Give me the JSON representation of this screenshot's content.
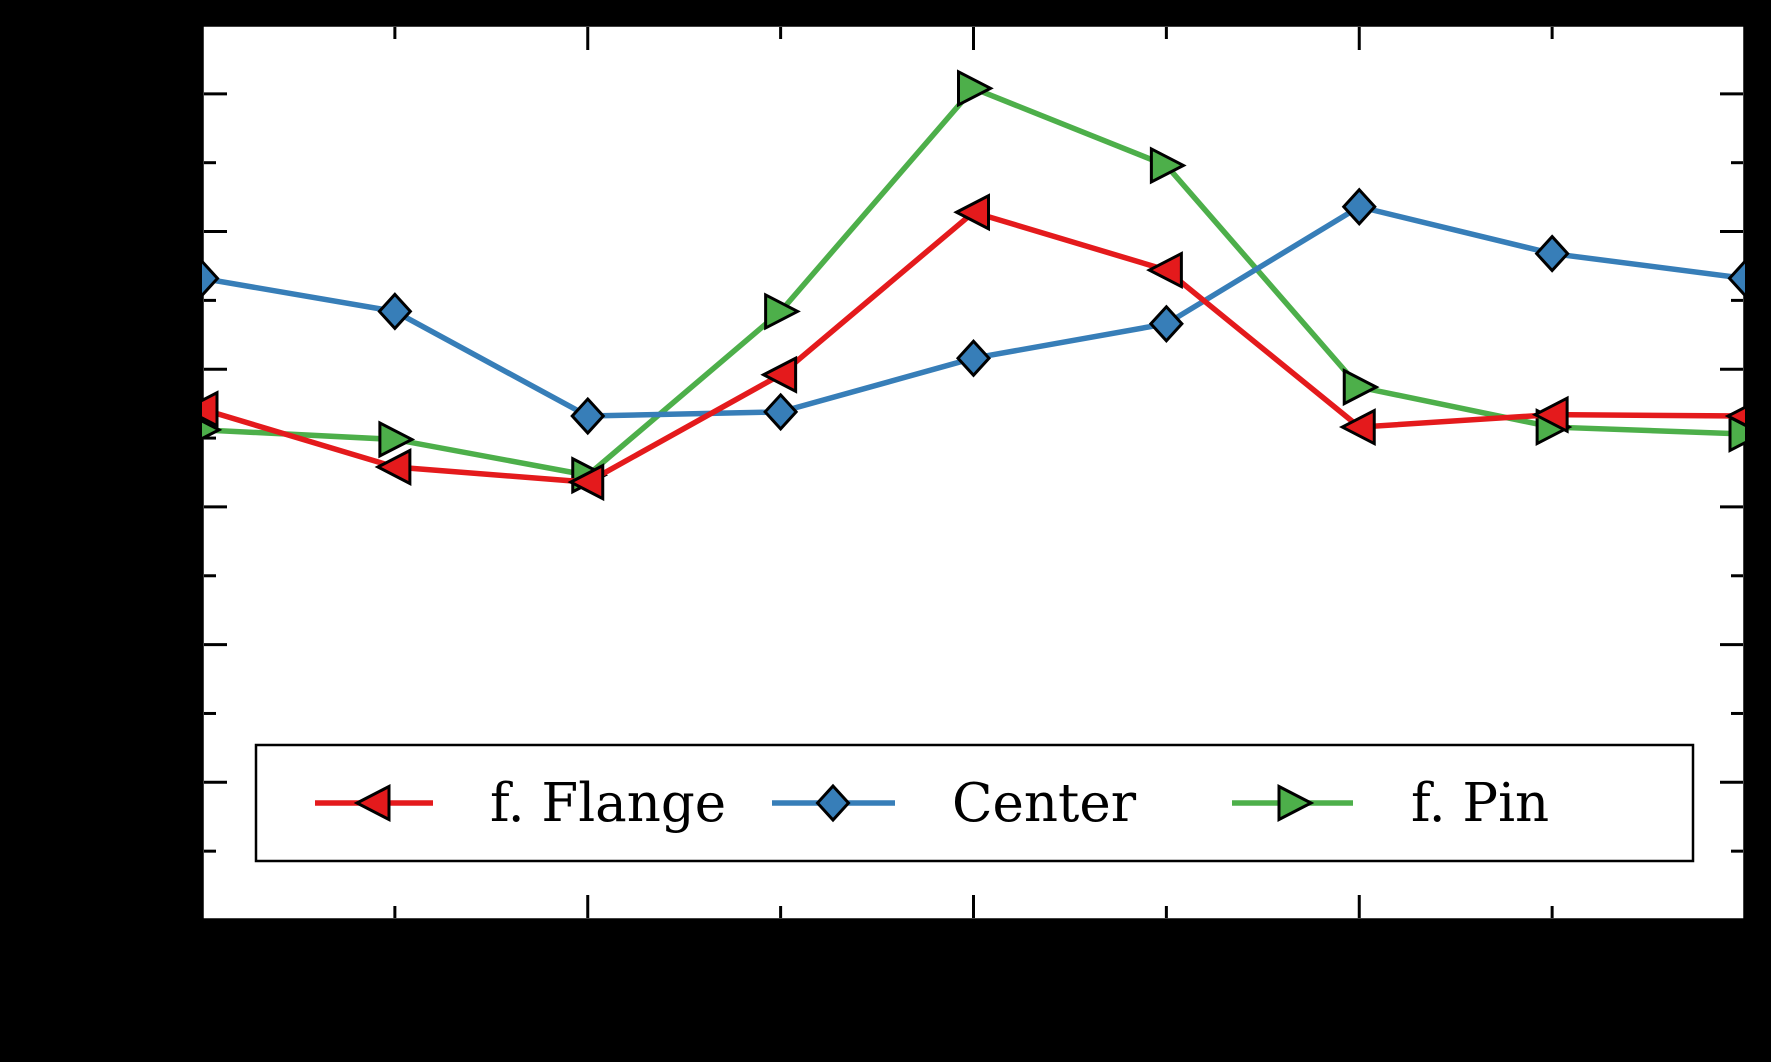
{
  "page": {
    "background_color": "#000000"
  },
  "plot": {
    "background_color": "#ffffff",
    "frame_color": "#000000",
    "tick_color": "#000000"
  },
  "legend": {
    "background_color": "#ffffff",
    "border_color": "#000000",
    "entries": [
      {
        "label": "f. Flange",
        "color": "#e41a1c",
        "marker": "triangle-left"
      },
      {
        "label": "Center",
        "color": "#377eb8",
        "marker": "diamond"
      },
      {
        "label": "f. Pin",
        "color": "#4daf4a",
        "marker": "triangle-right"
      }
    ]
  },
  "chart_data": {
    "type": "line",
    "title": "",
    "xlabel": "",
    "ylabel": "",
    "tick_labels_visible": false,
    "grid": false,
    "legend_position": "lower center",
    "x": [
      0,
      1,
      2,
      3,
      4,
      5,
      6,
      7,
      8
    ],
    "xlim": [
      0,
      8
    ],
    "ylim": [
      0,
      6.5
    ],
    "x_ticks_major": [
      2,
      4,
      6
    ],
    "x_ticks_minor": [
      1,
      3,
      5,
      7
    ],
    "y_ticks_major": [
      1,
      2,
      3,
      4,
      5,
      6
    ],
    "y_ticks_minor": [
      0.5,
      1.5,
      2.5,
      3.5,
      4.5,
      5.5
    ],
    "series": [
      {
        "name": "f. Flange",
        "color": "#e41a1c",
        "marker": "triangle-left",
        "values": [
          3.71,
          3.29,
          3.18,
          3.96,
          5.14,
          4.72,
          3.58,
          3.67,
          3.66
        ]
      },
      {
        "name": "Center",
        "color": "#377eb8",
        "marker": "diamond",
        "values": [
          4.66,
          4.42,
          3.66,
          3.69,
          4.08,
          4.33,
          5.18,
          4.84,
          4.66
        ]
      },
      {
        "name": "f. Pin",
        "color": "#4daf4a",
        "marker": "triangle-right",
        "values": [
          3.56,
          3.49,
          3.23,
          4.42,
          6.04,
          5.48,
          3.87,
          3.58,
          3.53
        ]
      }
    ]
  }
}
